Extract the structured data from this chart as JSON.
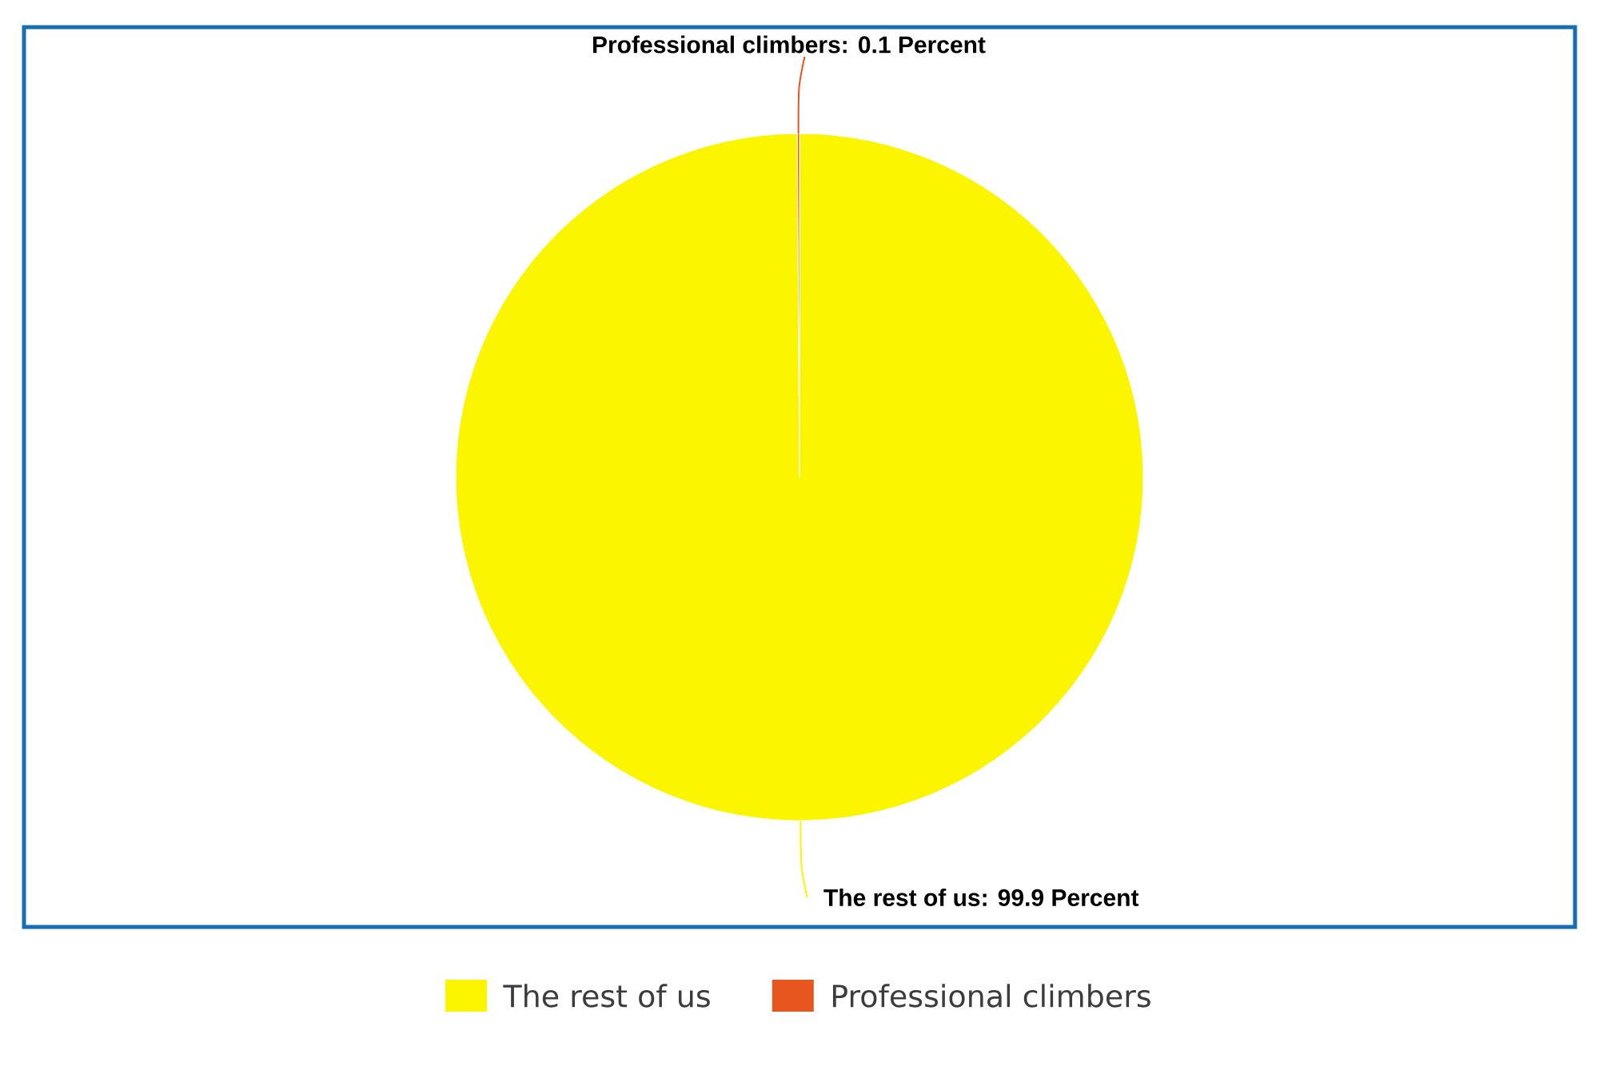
{
  "chart_data": {
    "type": "pie",
    "categories": [
      "The rest of us",
      "Professional climbers"
    ],
    "values": [
      99.9,
      0.1
    ],
    "colors": [
      "#fcf500",
      "#e8561f"
    ],
    "value_labels": [
      "The rest of us: 99.9 Percent",
      "Professional climbers: 0.1 Percent"
    ],
    "legend": "bottom"
  }
}
